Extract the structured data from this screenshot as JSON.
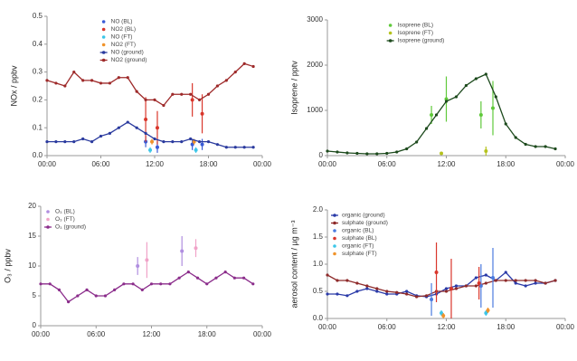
{
  "chart_data": [
    {
      "type": "line",
      "ylabel": "NOx / ppbv",
      "xlim": [
        0,
        24
      ],
      "ylim": [
        0,
        0.5
      ],
      "xticks": [
        {
          "value": 0,
          "label": "00:00"
        },
        {
          "value": 6,
          "label": "06:00"
        },
        {
          "value": 12,
          "label": "12:00"
        },
        {
          "value": 18,
          "label": "18:00"
        },
        {
          "value": 24,
          "label": "00:00"
        }
      ],
      "yticks": [
        {
          "value": 0,
          "label": "0.0"
        },
        0.1,
        0.2,
        0.3,
        0.4,
        0.5
      ],
      "legend": "upper center",
      "series": [
        {
          "name": "NO (BL)",
          "color": "#3a5bd6",
          "style": "points",
          "x": [
            11,
            12.3,
            16.2,
            17.3
          ],
          "values": [
            0.05,
            0.03,
            0.04,
            0.04
          ],
          "errors": [
            0.02,
            0.02,
            0.02,
            0.02
          ]
        },
        {
          "name": "NO2 (BL)",
          "color": "#d9362b",
          "style": "points",
          "x": [
            11,
            12.3,
            16.2,
            17.3
          ],
          "values": [
            0.13,
            0.1,
            0.2,
            0.15
          ],
          "errors": [
            0.08,
            0.06,
            0.06,
            0.07
          ]
        },
        {
          "name": "NO (FT)",
          "color": "#3cc6e8",
          "style": "points",
          "x": [
            11.5,
            16.6
          ],
          "values": [
            0.02,
            0.02
          ],
          "errors": [
            0.01,
            0.01
          ]
        },
        {
          "name": "NO2 (FT)",
          "color": "#f0932b",
          "style": "points",
          "x": [
            11.7,
            16.4
          ],
          "values": [
            0.05,
            0.05
          ],
          "errors": [
            0.01,
            0.01
          ]
        },
        {
          "name": "NO (ground)",
          "color": "#2a3a9e",
          "style": "line",
          "x": [
            0,
            1,
            2,
            3,
            4,
            5,
            6,
            7,
            8,
            9,
            10,
            11,
            12,
            13,
            14,
            15,
            16,
            17,
            18,
            19,
            20,
            21,
            22,
            23
          ],
          "values": [
            0.05,
            0.05,
            0.05,
            0.05,
            0.06,
            0.05,
            0.07,
            0.08,
            0.1,
            0.12,
            0.1,
            0.08,
            0.06,
            0.05,
            0.05,
            0.05,
            0.06,
            0.05,
            0.05,
            0.04,
            0.03,
            0.03,
            0.03,
            0.03
          ]
        },
        {
          "name": "NO2 (ground)",
          "color": "#9e2a2a",
          "style": "line",
          "x": [
            0,
            1,
            2,
            3,
            4,
            5,
            6,
            7,
            8,
            9,
            10,
            11,
            12,
            13,
            14,
            15,
            16,
            17,
            18,
            19,
            20,
            21,
            22,
            23
          ],
          "values": [
            0.27,
            0.26,
            0.25,
            0.3,
            0.27,
            0.27,
            0.26,
            0.26,
            0.28,
            0.28,
            0.23,
            0.2,
            0.2,
            0.18,
            0.22,
            0.22,
            0.22,
            0.2,
            0.22,
            0.25,
            0.27,
            0.3,
            0.33,
            0.32
          ]
        }
      ]
    },
    {
      "type": "line",
      "ylabel": "Isoprene / pptv",
      "xlim": [
        0,
        24
      ],
      "ylim": [
        0,
        3000
      ],
      "xticks": [
        {
          "value": 0,
          "label": "00:00"
        },
        {
          "value": 6,
          "label": "06:00"
        },
        {
          "value": 12,
          "label": "12:00"
        },
        {
          "value": 18,
          "label": "18:00"
        },
        {
          "value": 24,
          "label": "00:00"
        }
      ],
      "yticks": [
        0,
        1000,
        2000,
        3000
      ],
      "legend": "upper center",
      "series": [
        {
          "name": "Isoprene (BL)",
          "color": "#5fc93a",
          "style": "points",
          "x": [
            10.5,
            12,
            15.5,
            16.7
          ],
          "values": [
            900,
            1250,
            900,
            1050
          ],
          "errors": [
            200,
            500,
            300,
            600
          ]
        },
        {
          "name": "Isoprene (FT)",
          "color": "#b5c21e",
          "style": "points",
          "x": [
            11.5,
            16
          ],
          "values": [
            50,
            100
          ],
          "errors": [
            20,
            100
          ]
        },
        {
          "name": "Isoprene (ground)",
          "color": "#1d4a1d",
          "style": "line",
          "x": [
            0,
            1,
            2,
            3,
            4,
            5,
            6,
            7,
            8,
            9,
            10,
            11,
            12,
            13,
            14,
            15,
            16,
            17,
            18,
            19,
            20,
            21,
            22,
            23
          ],
          "values": [
            100,
            80,
            60,
            50,
            40,
            40,
            50,
            80,
            150,
            300,
            600,
            900,
            1200,
            1300,
            1550,
            1700,
            1800,
            1300,
            700,
            400,
            250,
            200,
            200,
            150
          ]
        }
      ]
    },
    {
      "type": "line",
      "ylabel": "O₃ / ppbv",
      "xlim": [
        0,
        24
      ],
      "ylim": [
        0,
        20
      ],
      "xticks": [
        {
          "value": 0,
          "label": "00:00"
        },
        {
          "value": 6,
          "label": "06:00"
        },
        {
          "value": 12,
          "label": "12:00"
        },
        {
          "value": 18,
          "label": "18:00"
        },
        {
          "value": 24,
          "label": "00:00"
        }
      ],
      "yticks": [
        0,
        5,
        10,
        15,
        20
      ],
      "legend": "upper left",
      "series": [
        {
          "name": "O₃ (BL)",
          "color": "#b08ee0",
          "style": "points",
          "x": [
            10.5,
            15.3
          ],
          "values": [
            10,
            12.5
          ],
          "errors": [
            1.5,
            2.5
          ]
        },
        {
          "name": "O₃ (FT)",
          "color": "#f0a3c8",
          "style": "points",
          "x": [
            11.5,
            16.8
          ],
          "values": [
            11,
            13
          ],
          "errors": [
            3,
            1.5
          ]
        },
        {
          "name": "O₃ (ground)",
          "color": "#8b2d8b",
          "style": "line",
          "x": [
            0,
            1,
            2,
            3,
            4,
            5,
            6,
            7,
            8,
            9,
            10,
            11,
            12,
            13,
            14,
            15,
            16,
            17,
            18,
            19,
            20,
            21,
            22,
            23
          ],
          "values": [
            7,
            7,
            6,
            4,
            5,
            6,
            5,
            5,
            6,
            7,
            7,
            6,
            7,
            7,
            7,
            8,
            9,
            8,
            7,
            8,
            9,
            8,
            8,
            7
          ]
        }
      ]
    },
    {
      "type": "line",
      "ylabel": "aerosol content / µg m⁻³",
      "xlim": [
        0,
        24
      ],
      "ylim": [
        0,
        2
      ],
      "xticks": [
        {
          "value": 0,
          "label": "00:00"
        },
        {
          "value": 6,
          "label": "06:00"
        },
        {
          "value": 12,
          "label": "12:00"
        },
        {
          "value": 18,
          "label": "18:00"
        },
        {
          "value": 24,
          "label": "00:00"
        }
      ],
      "yticks": [
        {
          "value": 0,
          "label": "0.0"
        },
        0.5,
        {
          "value": 1,
          "label": "1.0"
        },
        1.5,
        {
          "value": 2,
          "label": "2.0"
        }
      ],
      "legend": "upper left",
      "series": [
        {
          "name": "organic (ground)",
          "color": "#2a3aa8",
          "style": "line",
          "x": [
            0,
            1,
            2,
            3,
            4,
            5,
            6,
            7,
            8,
            9,
            10,
            11,
            12,
            13,
            14,
            15,
            16,
            17,
            18,
            19,
            20,
            21,
            22,
            23
          ],
          "values": [
            0.45,
            0.45,
            0.42,
            0.5,
            0.55,
            0.5,
            0.45,
            0.45,
            0.5,
            0.42,
            0.4,
            0.45,
            0.55,
            0.6,
            0.6,
            0.75,
            0.8,
            0.7,
            0.85,
            0.65,
            0.6,
            0.65,
            0.65,
            0.7
          ]
        },
        {
          "name": "sulphate (ground)",
          "color": "#8e2a2a",
          "style": "line",
          "x": [
            0,
            1,
            2,
            3,
            4,
            5,
            6,
            7,
            8,
            9,
            10,
            11,
            12,
            13,
            14,
            15,
            16,
            17,
            18,
            19,
            20,
            21,
            22,
            23
          ],
          "values": [
            0.8,
            0.7,
            0.7,
            0.65,
            0.6,
            0.55,
            0.5,
            0.48,
            0.45,
            0.4,
            0.42,
            0.5,
            0.5,
            0.55,
            0.6,
            0.6,
            0.65,
            0.7,
            0.7,
            0.7,
            0.7,
            0.7,
            0.65,
            0.7
          ]
        },
        {
          "name": "organic (BL)",
          "color": "#4a7be0",
          "style": "points",
          "x": [
            10.5,
            15.5,
            16.7
          ],
          "values": [
            0.35,
            0.6,
            0.75
          ],
          "errors": [
            0.3,
            0.4,
            0.55
          ]
        },
        {
          "name": "sulphate (BL)",
          "color": "#d9362b",
          "style": "points",
          "x": [
            11,
            12.5,
            15.3
          ],
          "values": [
            0.85,
            0.55,
            0.65
          ],
          "errors": [
            0.55,
            0.55,
            0.3
          ]
        },
        {
          "name": "organic (FT)",
          "color": "#3cc6e8",
          "style": "points",
          "x": [
            11.5,
            16
          ],
          "values": [
            0.1,
            0.1
          ],
          "errors": [
            0.05,
            0.05
          ]
        },
        {
          "name": "sulphate (FT)",
          "color": "#f0932b",
          "style": "points",
          "x": [
            11.7,
            16.2
          ],
          "values": [
            0.05,
            0.15
          ],
          "errors": [
            0.05,
            0.05
          ]
        }
      ]
    }
  ]
}
